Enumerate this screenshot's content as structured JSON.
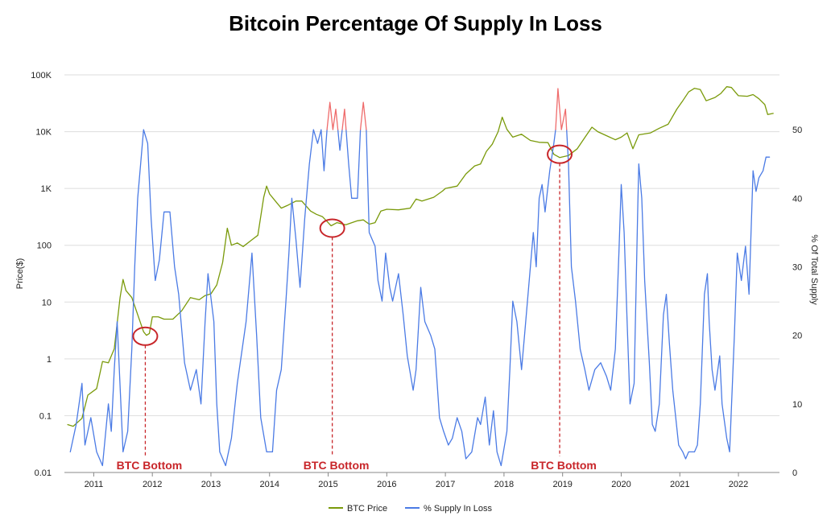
{
  "chart_data": {
    "type": "line",
    "title": "Bitcoin Percentage Of Supply In Loss",
    "y_left": {
      "label": "Price($)",
      "scale": "log",
      "range": [
        0.01,
        100000
      ],
      "ticks": [
        0.01,
        0.1,
        1,
        10,
        100,
        1000,
        10000,
        100000
      ],
      "tick_labels": [
        "0.01",
        "0.1",
        "1",
        "10",
        "100",
        "1K",
        "10K",
        "100K"
      ]
    },
    "y_right": {
      "label": "% Of Total Supply",
      "scale": "linear",
      "range": [
        0,
        58
      ],
      "ticks": [
        0,
        10,
        20,
        30,
        40,
        50
      ],
      "tick_labels": [
        "0",
        "10",
        "20",
        "30",
        "40",
        "50"
      ]
    },
    "x_axis": {
      "range": [
        2010.5,
        2022.7
      ],
      "ticks": [
        2011,
        2012,
        2013,
        2014,
        2015,
        2016,
        2017,
        2018,
        2019,
        2020,
        2021,
        2022
      ],
      "tick_labels": [
        "2011",
        "2012",
        "2013",
        "2014",
        "2015",
        "2016",
        "2017",
        "2018",
        "2019",
        "2020",
        "2021",
        "2022"
      ]
    },
    "grid": true,
    "legend_position": "bottom-center",
    "series": [
      {
        "name": "BTC Price",
        "color": "#7a9a0a",
        "axis": "left",
        "points": [
          [
            2010.55,
            0.07
          ],
          [
            2010.65,
            0.065
          ],
          [
            2010.8,
            0.09
          ],
          [
            2010.9,
            0.23
          ],
          [
            2011.05,
            0.3
          ],
          [
            2011.15,
            0.9
          ],
          [
            2011.25,
            0.85
          ],
          [
            2011.35,
            1.5
          ],
          [
            2011.45,
            12
          ],
          [
            2011.5,
            25
          ],
          [
            2011.55,
            16
          ],
          [
            2011.65,
            12
          ],
          [
            2011.75,
            6
          ],
          [
            2011.85,
            3
          ],
          [
            2011.9,
            2.6
          ],
          [
            2011.95,
            2.8
          ],
          [
            2012.0,
            5.5
          ],
          [
            2012.1,
            5.5
          ],
          [
            2012.2,
            5
          ],
          [
            2012.35,
            5
          ],
          [
            2012.5,
            7
          ],
          [
            2012.65,
            12
          ],
          [
            2012.8,
            11
          ],
          [
            2012.9,
            13
          ],
          [
            2013.0,
            14
          ],
          [
            2013.1,
            20
          ],
          [
            2013.2,
            50
          ],
          [
            2013.28,
            200
          ],
          [
            2013.35,
            100
          ],
          [
            2013.45,
            110
          ],
          [
            2013.55,
            95
          ],
          [
            2013.7,
            125
          ],
          [
            2013.8,
            150
          ],
          [
            2013.9,
            700
          ],
          [
            2013.95,
            1100
          ],
          [
            2014.0,
            800
          ],
          [
            2014.1,
            600
          ],
          [
            2014.2,
            450
          ],
          [
            2014.3,
            500
          ],
          [
            2014.45,
            600
          ],
          [
            2014.55,
            600
          ],
          [
            2014.7,
            400
          ],
          [
            2014.8,
            350
          ],
          [
            2014.9,
            320
          ],
          [
            2015.0,
            250
          ],
          [
            2015.05,
            220
          ],
          [
            2015.15,
            250
          ],
          [
            2015.3,
            230
          ],
          [
            2015.5,
            270
          ],
          [
            2015.6,
            280
          ],
          [
            2015.7,
            235
          ],
          [
            2015.8,
            250
          ],
          [
            2015.9,
            400
          ],
          [
            2016.0,
            430
          ],
          [
            2016.2,
            420
          ],
          [
            2016.4,
            450
          ],
          [
            2016.5,
            650
          ],
          [
            2016.6,
            600
          ],
          [
            2016.8,
            700
          ],
          [
            2016.95,
            900
          ],
          [
            2017.0,
            1000
          ],
          [
            2017.2,
            1100
          ],
          [
            2017.35,
            1800
          ],
          [
            2017.5,
            2500
          ],
          [
            2017.6,
            2700
          ],
          [
            2017.7,
            4500
          ],
          [
            2017.8,
            6000
          ],
          [
            2017.9,
            10000
          ],
          [
            2017.97,
            18000
          ],
          [
            2018.05,
            11000
          ],
          [
            2018.15,
            8000
          ],
          [
            2018.3,
            9000
          ],
          [
            2018.45,
            7000
          ],
          [
            2018.6,
            6500
          ],
          [
            2018.75,
            6400
          ],
          [
            2018.85,
            4000
          ],
          [
            2018.95,
            3500
          ],
          [
            2019.1,
            3800
          ],
          [
            2019.25,
            5000
          ],
          [
            2019.4,
            8500
          ],
          [
            2019.5,
            12000
          ],
          [
            2019.6,
            10000
          ],
          [
            2019.75,
            8500
          ],
          [
            2019.9,
            7200
          ],
          [
            2020.0,
            8000
          ],
          [
            2020.1,
            9500
          ],
          [
            2020.2,
            5000
          ],
          [
            2020.3,
            8800
          ],
          [
            2020.5,
            9500
          ],
          [
            2020.65,
            11500
          ],
          [
            2020.8,
            13500
          ],
          [
            2020.95,
            25000
          ],
          [
            2021.05,
            35000
          ],
          [
            2021.15,
            50000
          ],
          [
            2021.25,
            58000
          ],
          [
            2021.35,
            55000
          ],
          [
            2021.45,
            35000
          ],
          [
            2021.6,
            40000
          ],
          [
            2021.7,
            47000
          ],
          [
            2021.8,
            62000
          ],
          [
            2021.88,
            60000
          ],
          [
            2022.0,
            43000
          ],
          [
            2022.15,
            42000
          ],
          [
            2022.25,
            45000
          ],
          [
            2022.35,
            38000
          ],
          [
            2022.45,
            30000
          ],
          [
            2022.5,
            20000
          ],
          [
            2022.6,
            21000
          ]
        ]
      },
      {
        "name": "% Supply In Loss",
        "color": "#4b7be5",
        "axis": "right",
        "points": [
          [
            2010.6,
            3
          ],
          [
            2010.7,
            7
          ],
          [
            2010.8,
            13
          ],
          [
            2010.85,
            4
          ],
          [
            2010.95,
            8
          ],
          [
            2011.05,
            3
          ],
          [
            2011.15,
            1
          ],
          [
            2011.25,
            10
          ],
          [
            2011.3,
            6
          ],
          [
            2011.35,
            15
          ],
          [
            2011.4,
            22
          ],
          [
            2011.5,
            3
          ],
          [
            2011.58,
            6
          ],
          [
            2011.65,
            18
          ],
          [
            2011.7,
            30
          ],
          [
            2011.75,
            40
          ],
          [
            2011.85,
            50
          ],
          [
            2011.92,
            48
          ],
          [
            2011.98,
            37
          ],
          [
            2012.05,
            28
          ],
          [
            2012.12,
            31
          ],
          [
            2012.2,
            38
          ],
          [
            2012.3,
            38
          ],
          [
            2012.38,
            30
          ],
          [
            2012.45,
            26
          ],
          [
            2012.55,
            16
          ],
          [
            2012.65,
            12
          ],
          [
            2012.75,
            15
          ],
          [
            2012.83,
            10
          ],
          [
            2012.9,
            22
          ],
          [
            2012.95,
            29
          ],
          [
            2013.05,
            22
          ],
          [
            2013.1,
            10
          ],
          [
            2013.15,
            3
          ],
          [
            2013.25,
            1
          ],
          [
            2013.35,
            5
          ],
          [
            2013.45,
            13
          ],
          [
            2013.6,
            22
          ],
          [
            2013.7,
            32
          ],
          [
            2013.78,
            20
          ],
          [
            2013.85,
            8
          ],
          [
            2013.95,
            3
          ],
          [
            2014.05,
            3
          ],
          [
            2014.12,
            12
          ],
          [
            2014.2,
            15
          ],
          [
            2014.28,
            25
          ],
          [
            2014.33,
            32
          ],
          [
            2014.38,
            40
          ],
          [
            2014.45,
            34
          ],
          [
            2014.52,
            27
          ],
          [
            2014.6,
            37
          ],
          [
            2014.68,
            45
          ],
          [
            2014.75,
            50
          ],
          [
            2014.82,
            48
          ],
          [
            2014.88,
            50
          ],
          [
            2014.93,
            44
          ],
          [
            2014.98,
            50
          ],
          [
            2015.03,
            54
          ],
          [
            2015.08,
            50
          ],
          [
            2015.13,
            53
          ],
          [
            2015.2,
            47
          ],
          [
            2015.28,
            53
          ],
          [
            2015.35,
            45
          ],
          [
            2015.4,
            40
          ],
          [
            2015.5,
            40
          ],
          [
            2015.55,
            50
          ],
          [
            2015.6,
            54
          ],
          [
            2015.65,
            50
          ],
          [
            2015.7,
            35
          ],
          [
            2015.8,
            33
          ],
          [
            2015.85,
            28
          ],
          [
            2015.92,
            25
          ],
          [
            2015.98,
            32
          ],
          [
            2016.05,
            27
          ],
          [
            2016.1,
            25
          ],
          [
            2016.2,
            29
          ],
          [
            2016.28,
            23
          ],
          [
            2016.35,
            17
          ],
          [
            2016.45,
            12
          ],
          [
            2016.5,
            15
          ],
          [
            2016.58,
            27
          ],
          [
            2016.65,
            22
          ],
          [
            2016.75,
            20
          ],
          [
            2016.82,
            18
          ],
          [
            2016.9,
            8
          ],
          [
            2016.97,
            6
          ],
          [
            2017.05,
            4
          ],
          [
            2017.12,
            5
          ],
          [
            2017.2,
            8
          ],
          [
            2017.28,
            6
          ],
          [
            2017.35,
            2
          ],
          [
            2017.45,
            3
          ],
          [
            2017.55,
            8
          ],
          [
            2017.6,
            7
          ],
          [
            2017.68,
            11
          ],
          [
            2017.75,
            4
          ],
          [
            2017.82,
            9
          ],
          [
            2017.88,
            3
          ],
          [
            2017.95,
            1
          ],
          [
            2018.05,
            6
          ],
          [
            2018.1,
            15
          ],
          [
            2018.15,
            25
          ],
          [
            2018.22,
            22
          ],
          [
            2018.3,
            15
          ],
          [
            2018.35,
            20
          ],
          [
            2018.42,
            27
          ],
          [
            2018.5,
            35
          ],
          [
            2018.55,
            30
          ],
          [
            2018.6,
            40
          ],
          [
            2018.65,
            42
          ],
          [
            2018.7,
            38
          ],
          [
            2018.78,
            44
          ],
          [
            2018.85,
            48
          ],
          [
            2018.88,
            50
          ],
          [
            2018.92,
            56
          ],
          [
            2018.98,
            50
          ],
          [
            2019.05,
            53
          ],
          [
            2019.1,
            45
          ],
          [
            2019.15,
            30
          ],
          [
            2019.22,
            25
          ],
          [
            2019.3,
            18
          ],
          [
            2019.38,
            15
          ],
          [
            2019.45,
            12
          ],
          [
            2019.55,
            15
          ],
          [
            2019.65,
            16
          ],
          [
            2019.75,
            14
          ],
          [
            2019.82,
            12
          ],
          [
            2019.9,
            18
          ],
          [
            2019.96,
            32
          ],
          [
            2020.0,
            42
          ],
          [
            2020.05,
            35
          ],
          [
            2020.1,
            22
          ],
          [
            2020.15,
            10
          ],
          [
            2020.22,
            13
          ],
          [
            2020.28,
            38
          ],
          [
            2020.3,
            45
          ],
          [
            2020.35,
            40
          ],
          [
            2020.4,
            28
          ],
          [
            2020.48,
            16
          ],
          [
            2020.53,
            7
          ],
          [
            2020.58,
            6
          ],
          [
            2020.65,
            10
          ],
          [
            2020.72,
            23
          ],
          [
            2020.77,
            26
          ],
          [
            2020.82,
            19
          ],
          [
            2020.88,
            12
          ],
          [
            2020.93,
            8
          ],
          [
            2020.98,
            4
          ],
          [
            2021.05,
            3
          ],
          [
            2021.1,
            2
          ],
          [
            2021.15,
            3
          ],
          [
            2021.25,
            3
          ],
          [
            2021.3,
            4
          ],
          [
            2021.35,
            10
          ],
          [
            2021.42,
            26
          ],
          [
            2021.47,
            29
          ],
          [
            2021.5,
            22
          ],
          [
            2021.55,
            15
          ],
          [
            2021.6,
            12
          ],
          [
            2021.68,
            17
          ],
          [
            2021.72,
            10
          ],
          [
            2021.8,
            5
          ],
          [
            2021.85,
            3
          ],
          [
            2021.93,
            20
          ],
          [
            2021.98,
            32
          ],
          [
            2022.05,
            28
          ],
          [
            2022.12,
            33
          ],
          [
            2022.18,
            26
          ],
          [
            2022.25,
            44
          ],
          [
            2022.3,
            41
          ],
          [
            2022.35,
            43
          ],
          [
            2022.42,
            44
          ],
          [
            2022.47,
            46
          ],
          [
            2022.53,
            46
          ]
        ]
      }
    ],
    "highlight": {
      "color": "#ef6b6b",
      "above_percent": 50
    },
    "annotations": [
      {
        "label": "BTC Bottom",
        "x": 2011.88,
        "y_price": 2.5,
        "color": "#c8262a"
      },
      {
        "label": "BTC Bottom",
        "x": 2015.07,
        "y_price": 200,
        "color": "#c8262a"
      },
      {
        "label": "BTC Bottom",
        "x": 2018.95,
        "y_price": 4000,
        "color": "#c8262a"
      }
    ]
  }
}
